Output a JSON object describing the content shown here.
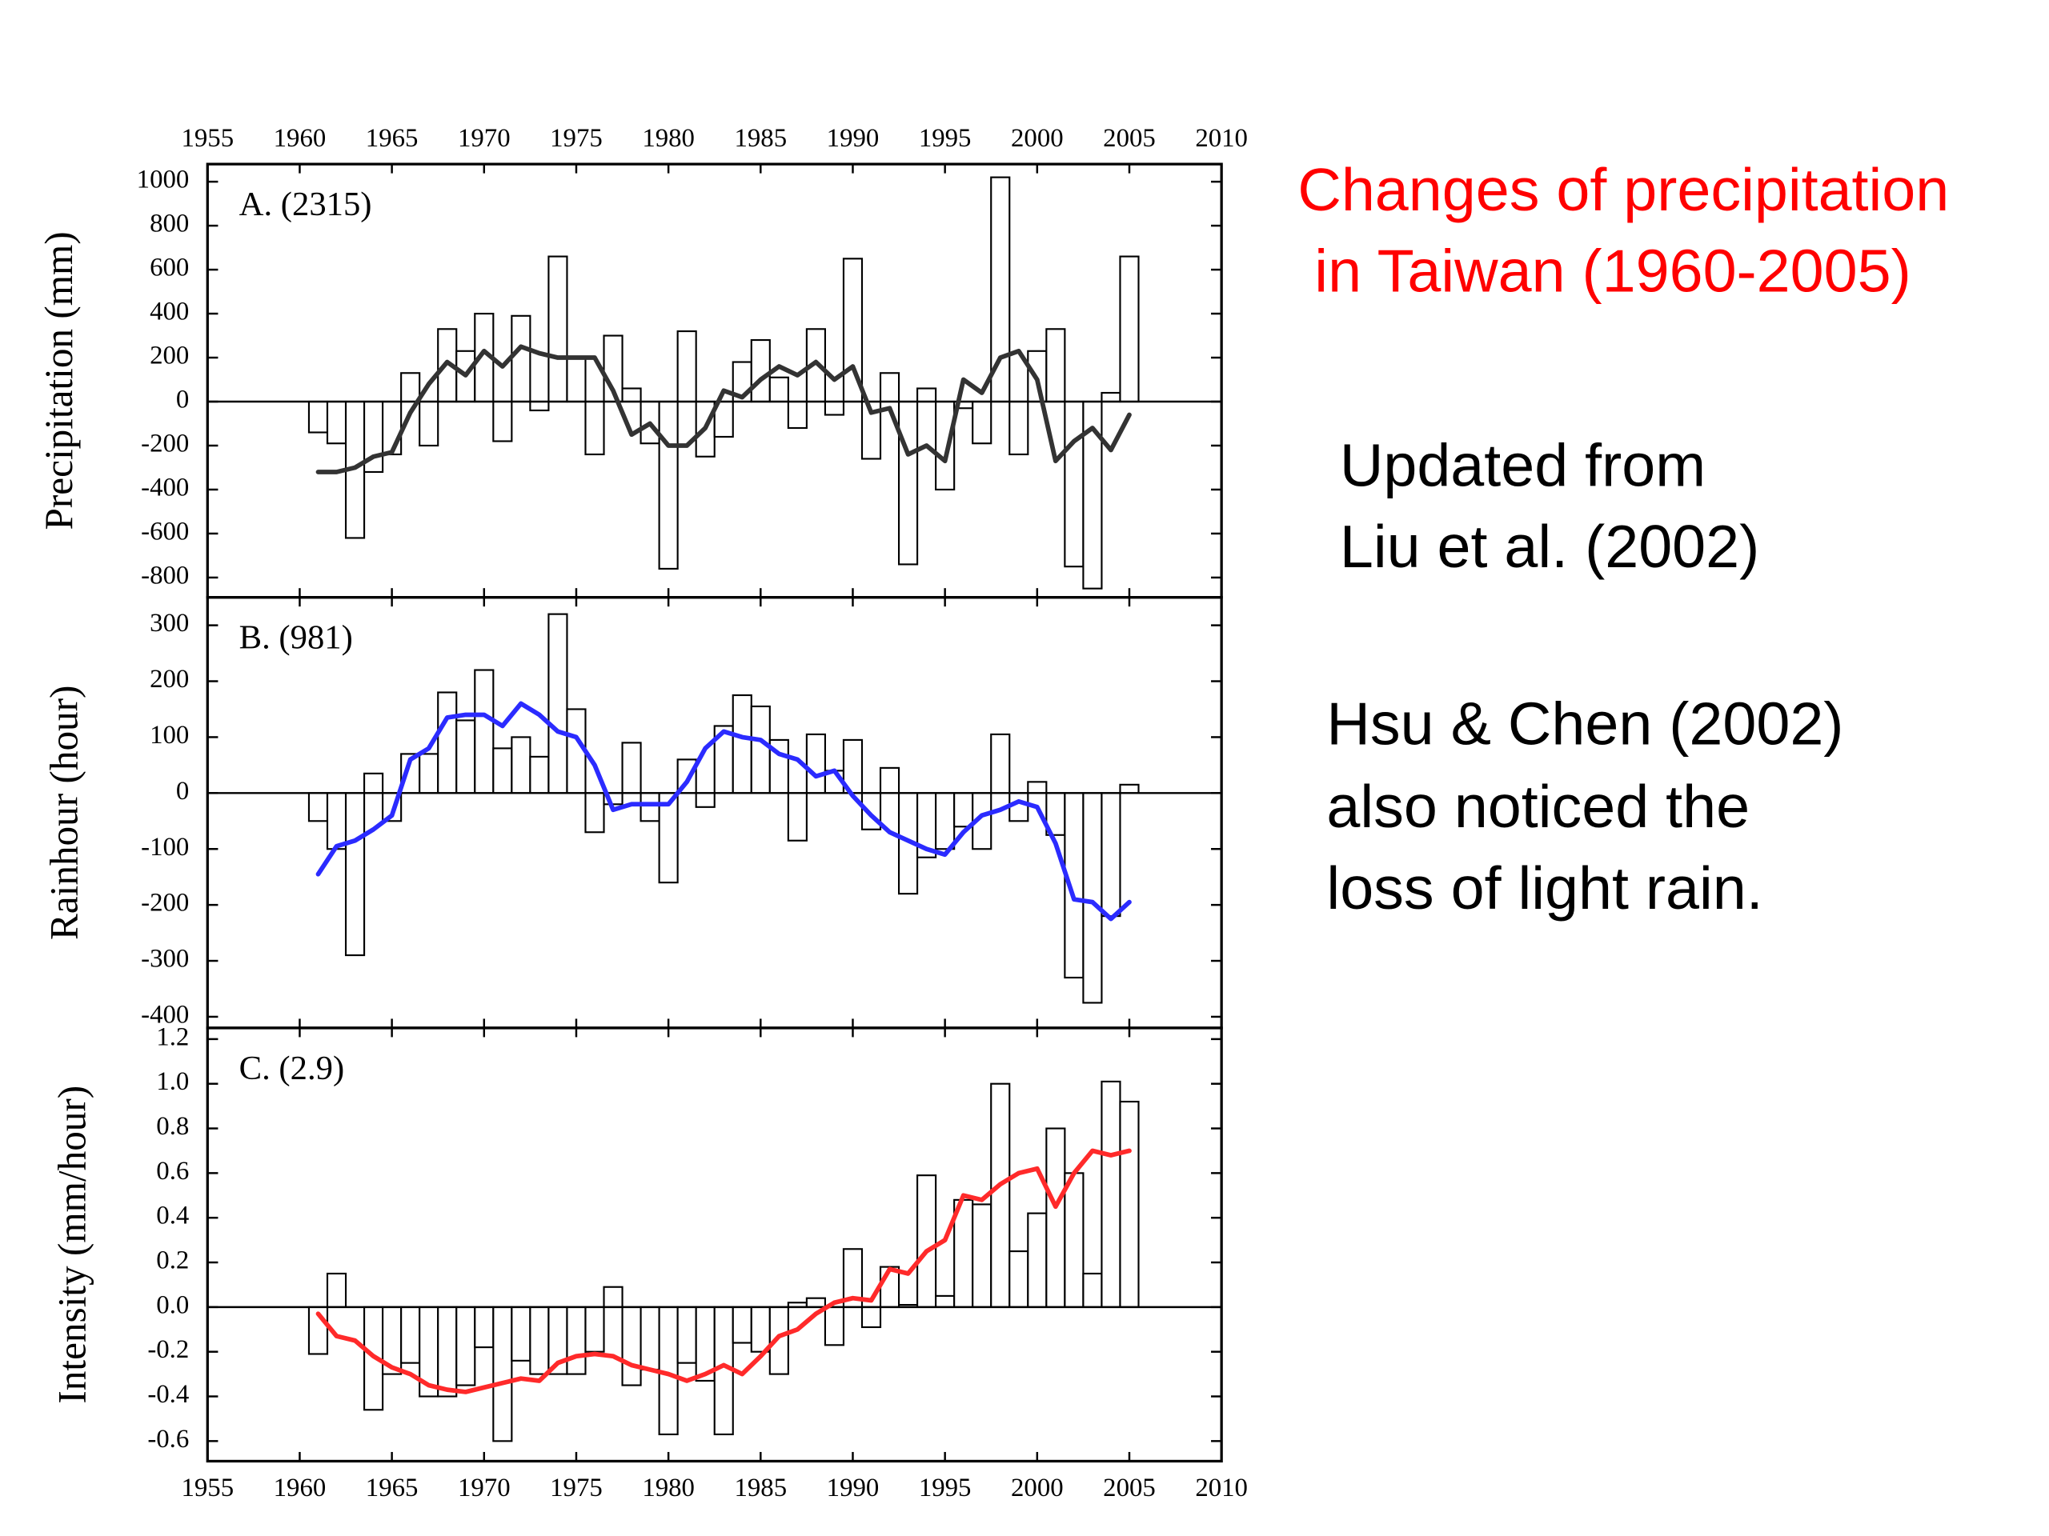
{
  "slide": {
    "title": [
      "Changes of precipitation",
      " in Taiwan (1960-2005)"
    ],
    "notes": [
      "Updated from",
      "Liu et al. (2002)",
      "Hsu & Chen (2002)",
      "also noticed the",
      "loss of light rain."
    ]
  },
  "chart_data": [
    {
      "type": "bar",
      "label": "A. (2315)",
      "ylabel": "Precipitation (mm)",
      "color": "#ffffff",
      "edge_color": "#000000",
      "trend_color": "#333333",
      "x": [
        1961,
        1962,
        1963,
        1964,
        1965,
        1966,
        1967,
        1968,
        1969,
        1970,
        1971,
        1972,
        1973,
        1974,
        1975,
        1976,
        1977,
        1978,
        1979,
        1980,
        1981,
        1982,
        1983,
        1984,
        1985,
        1986,
        1987,
        1988,
        1989,
        1990,
        1991,
        1992,
        1993,
        1994,
        1995,
        1996,
        1997,
        1998,
        1999,
        2000,
        2001,
        2002,
        2003,
        2004,
        2005
      ],
      "values": [
        -140,
        -190,
        -620,
        -320,
        -240,
        130,
        -200,
        330,
        230,
        400,
        -180,
        390,
        -40,
        660,
        200,
        -240,
        300,
        60,
        -190,
        -760,
        320,
        -250,
        -160,
        180,
        280,
        110,
        -120,
        330,
        -60,
        650,
        -260,
        130,
        -740,
        60,
        -400,
        -30,
        -190,
        1020,
        -240,
        230,
        330,
        -750,
        -850,
        40,
        660
      ],
      "trend_values": [
        -320,
        -320,
        -300,
        -250,
        -230,
        -50,
        80,
        180,
        120,
        230,
        160,
        250,
        220,
        200,
        200,
        200,
        50,
        -150,
        -100,
        -200,
        -200,
        -120,
        50,
        20,
        100,
        160,
        120,
        180,
        100,
        160,
        -50,
        -30,
        -240,
        -200,
        -270,
        100,
        40,
        200,
        230,
        100,
        -270,
        -180,
        -120,
        -220,
        -60
      ],
      "xlim": [
        1955,
        2010
      ],
      "xticks": [
        1955,
        1960,
        1965,
        1970,
        1975,
        1980,
        1985,
        1990,
        1995,
        2000,
        2005,
        2010
      ],
      "ylim": [
        -890,
        1080
      ],
      "yticks": [
        -800,
        -600,
        -400,
        -200,
        0,
        200,
        400,
        600,
        800,
        1000
      ]
    },
    {
      "type": "bar",
      "label": "B. (981)",
      "ylabel": "Rainhour (hour)",
      "color": "#ffffff",
      "edge_color": "#000000",
      "trend_color": "#2b2bff",
      "x": [
        1961,
        1962,
        1963,
        1964,
        1965,
        1966,
        1967,
        1968,
        1969,
        1970,
        1971,
        1972,
        1973,
        1974,
        1975,
        1976,
        1977,
        1978,
        1979,
        1980,
        1981,
        1982,
        1983,
        1984,
        1985,
        1986,
        1987,
        1988,
        1989,
        1990,
        1991,
        1992,
        1993,
        1994,
        1995,
        1996,
        1997,
        1998,
        1999,
        2000,
        2001,
        2002,
        2003,
        2004,
        2005
      ],
      "values": [
        -50,
        -100,
        -290,
        35,
        -50,
        70,
        70,
        180,
        130,
        220,
        80,
        100,
        65,
        320,
        150,
        -70,
        -20,
        90,
        -50,
        -160,
        60,
        -25,
        120,
        175,
        155,
        95,
        -85,
        105,
        40,
        95,
        -65,
        45,
        -180,
        -115,
        -100,
        -60,
        -100,
        105,
        -50,
        20,
        -75,
        -330,
        -375,
        -220,
        15
      ],
      "trend_values": [
        -145,
        -95,
        -85,
        -65,
        -40,
        60,
        80,
        135,
        140,
        140,
        120,
        160,
        140,
        110,
        100,
        50,
        -30,
        -20,
        -20,
        -20,
        20,
        80,
        110,
        100,
        95,
        70,
        60,
        30,
        40,
        -5,
        -40,
        -70,
        -85,
        -100,
        -110,
        -70,
        -40,
        -30,
        -15,
        -25,
        -90,
        -190,
        -195,
        -225,
        -195
      ],
      "xlim": [
        1955,
        2010
      ],
      "xticks": [
        1955,
        1960,
        1965,
        1970,
        1975,
        1980,
        1985,
        1990,
        1995,
        2000,
        2005,
        2010
      ],
      "ylim": [
        -420,
        350
      ],
      "yticks": [
        -400,
        -300,
        -200,
        -100,
        0,
        100,
        200,
        300
      ]
    },
    {
      "type": "bar",
      "label": "C. (2.9)",
      "ylabel": "Intensity (mm/hour)",
      "color": "#ffffff",
      "edge_color": "#000000",
      "trend_color": "#ff2a2a",
      "x": [
        1961,
        1962,
        1963,
        1964,
        1965,
        1966,
        1967,
        1968,
        1969,
        1970,
        1971,
        1972,
        1973,
        1974,
        1975,
        1976,
        1977,
        1978,
        1979,
        1980,
        1981,
        1982,
        1983,
        1984,
        1985,
        1986,
        1987,
        1988,
        1989,
        1990,
        1991,
        1992,
        1993,
        1994,
        1995,
        1996,
        1997,
        1998,
        1999,
        2000,
        2001,
        2002,
        2003,
        2004,
        2005
      ],
      "values": [
        -0.21,
        0.15,
        0.0,
        -0.46,
        -0.3,
        -0.25,
        -0.4,
        -0.4,
        -0.35,
        -0.18,
        -0.6,
        -0.24,
        -0.3,
        -0.3,
        -0.3,
        -0.2,
        0.09,
        -0.35,
        -0.28,
        -0.57,
        -0.25,
        -0.33,
        -0.57,
        -0.16,
        -0.2,
        -0.3,
        0.02,
        0.04,
        -0.17,
        0.26,
        -0.09,
        0.18,
        0.01,
        0.59,
        0.05,
        0.48,
        0.46,
        1.0,
        0.25,
        0.42,
        0.8,
        0.6,
        0.15,
        1.01,
        0.92
      ],
      "trend_values": [
        -0.03,
        -0.13,
        -0.15,
        -0.22,
        -0.27,
        -0.3,
        -0.35,
        -0.37,
        -0.38,
        -0.36,
        -0.34,
        -0.32,
        -0.33,
        -0.25,
        -0.22,
        -0.21,
        -0.22,
        -0.26,
        -0.28,
        -0.3,
        -0.33,
        -0.3,
        -0.26,
        -0.3,
        -0.22,
        -0.13,
        -0.1,
        -0.03,
        0.02,
        0.04,
        0.03,
        0.17,
        0.15,
        0.25,
        0.3,
        0.5,
        0.48,
        0.55,
        0.6,
        0.62,
        0.45,
        0.6,
        0.7,
        0.68,
        0.7
      ],
      "xlim": [
        1955,
        2010
      ],
      "xticks": [
        1955,
        1960,
        1965,
        1970,
        1975,
        1980,
        1985,
        1990,
        1995,
        2000,
        2005,
        2010
      ],
      "ylim": [
        -0.69,
        1.25
      ],
      "yticks": [
        -0.6,
        -0.4,
        -0.2,
        {
          "value": 0,
          "label": "0.0"
        },
        0.2,
        0.4,
        0.6,
        0.8,
        {
          "value": 1,
          "label": "1.0"
        },
        1.2
      ]
    }
  ]
}
